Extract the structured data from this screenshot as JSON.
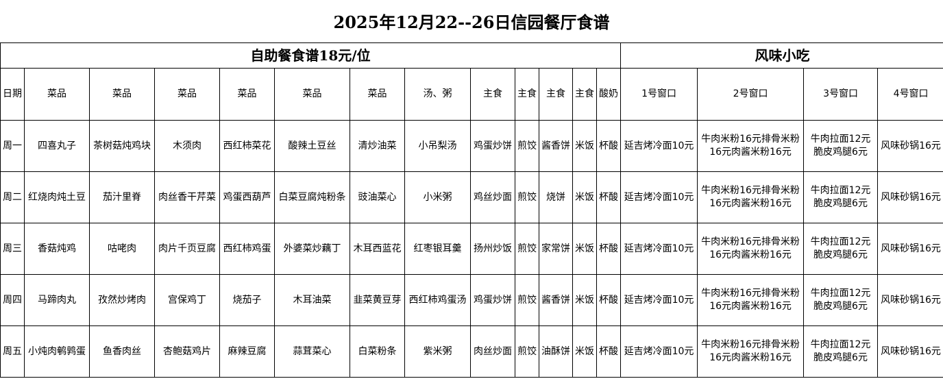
{
  "title": "2025年12月22--26日信园餐厅食谱",
  "sections": {
    "buffet": "自助餐食谱18元/位",
    "snacks": "风味小吃"
  },
  "headers": [
    "日期",
    "菜品",
    "菜品",
    "菜品",
    "菜品",
    "菜品",
    "菜品",
    "汤、粥",
    "主食",
    "主食",
    "主食",
    "主食",
    "酸奶",
    "1号窗口",
    "2号窗口",
    "3号窗口",
    "4号窗口"
  ],
  "rows": [
    [
      "周一",
      "四喜丸子",
      "茶树菇炖鸡块",
      "木须肉",
      "西红柿菜花",
      "酸辣土豆丝",
      "清炒油菜",
      "小吊梨汤",
      "鸡蛋炒饼",
      "煎饺",
      "酱香饼",
      "米饭",
      "杯酸",
      "延吉烤冷面10元",
      "牛肉米粉16元排骨米粉16元肉酱米粉16元",
      "牛肉拉面12元脆皮鸡腿6元",
      "风味砂锅16元"
    ],
    [
      "周二",
      "红烧肉炖土豆",
      "茄汁里脊",
      "肉丝香干芹菜",
      "鸡蛋西葫芦",
      "白菜豆腐炖粉条",
      "豉油菜心",
      "小米粥",
      "鸡丝炒面",
      "煎饺",
      "烧饼",
      "米饭",
      "杯酸",
      "延吉烤冷面10元",
      "牛肉米粉16元排骨米粉16元肉酱米粉16元",
      "牛肉拉面12元脆皮鸡腿6元",
      "风味砂锅16元"
    ],
    [
      "周三",
      "香菇炖鸡",
      "咕咾肉",
      "肉片千页豆腐",
      "西红柿鸡蛋",
      "外婆菜炒藕丁",
      "木耳西蓝花",
      "红枣银耳羹",
      "扬州炒饭",
      "煎饺",
      "家常饼",
      "米饭",
      "杯酸",
      "延吉烤冷面10元",
      "牛肉米粉16元排骨米粉16元肉酱米粉16元",
      "牛肉拉面12元脆皮鸡腿6元",
      "风味砂锅16元"
    ],
    [
      "周四",
      "马蹄肉丸",
      "孜然炒烤肉",
      "宫保鸡丁",
      "烧茄子",
      "木耳油菜",
      "韭菜黄豆芽",
      "西红柿鸡蛋汤",
      "鸡蛋炒饼",
      "煎饺",
      "酱香饼",
      "米饭",
      "杯酸",
      "延吉烤冷面10元",
      "牛肉米粉16元排骨米粉16元肉酱米粉16元",
      "牛肉拉面12元脆皮鸡腿6元",
      "风味砂锅16元"
    ],
    [
      "周五",
      "小炖肉鹌鹑蛋",
      "鱼香肉丝",
      "杏鲍菇鸡片",
      "麻辣豆腐",
      "蒜茸菜心",
      "白菜粉条",
      "紫米粥",
      "肉丝炒面",
      "煎饺",
      "油酥饼",
      "米饭",
      "杯酸",
      "延吉烤冷面10元",
      "牛肉米粉16元排骨米粉16元肉酱米粉16元",
      "牛肉拉面12元脆皮鸡腿6元",
      "风味砂锅16元"
    ]
  ]
}
